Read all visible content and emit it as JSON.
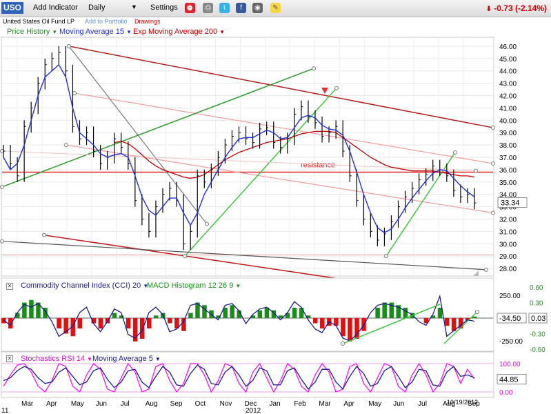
{
  "toolbar": {
    "ticker": "USO",
    "add_indicator": "Add Indicator",
    "period": "Daily",
    "settings": "Settings",
    "change": "-0.73 (-2.14%)",
    "icons": [
      "alarm-clock-icon",
      "print-icon",
      "twitter-icon",
      "facebook-icon",
      "camera-icon",
      "note-icon"
    ]
  },
  "subbar": {
    "name": "United States Oil Fund LP",
    "add_portfolio": "Add to Portfolio",
    "drawings": "Drawings"
  },
  "legends": {
    "price": "Price History",
    "ma": "Moving Average 15",
    "ema": "Exp Moving Average 200",
    "cci": "Commodity Channel Index (CCI) 20",
    "macd": "MACD Histogram 12 26 9",
    "stoch": "Stochastics RSI 14",
    "stoch_ma": "Moving Average 5"
  },
  "colors": {
    "price": "#000000",
    "ma": "#1e2ee0",
    "ema": "#c00000",
    "macd_pos": "#1a8c1a",
    "macd_neg": "#e01010",
    "cci": "#1a1a8c",
    "stoch": "#ff00ff",
    "stoch_ma": "#1a1a8c",
    "label_green": "#2a8a2a",
    "label_magenta": "#d010d0"
  },
  "chart_data": [
    {
      "type": "line",
      "panel": "price",
      "y_ticks": [
        "46.00",
        "45.00",
        "44.00",
        "43.00",
        "42.00",
        "41.00",
        "40.00",
        "39.00",
        "38.00",
        "37.00",
        "36.00",
        "35.00",
        "34.00",
        "33.00",
        "32.00",
        "31.00",
        "30.00",
        "29.00",
        "28.00"
      ],
      "ylim": [
        27.5,
        46.5
      ],
      "last_value": "33.34",
      "annotation": "resistance",
      "resistance_level": 35.8,
      "x_labels": [
        "Mar",
        "Apr",
        "May",
        "Jun",
        "Jul",
        "Aug",
        "Sep",
        "Oct",
        "Nov",
        "Dec",
        "Jan",
        "Feb",
        "Mar",
        "Apr",
        "May",
        "Jun",
        "Jul",
        "Aug",
        "Sep"
      ],
      "year_label": "2012",
      "left_label": "11",
      "date_label": "10/19/2012",
      "x": [
        0,
        10,
        20,
        30,
        40,
        50,
        60,
        70,
        80,
        90,
        100,
        110,
        120,
        130,
        140,
        150,
        160,
        170,
        180,
        190,
        200,
        210,
        220,
        230,
        240,
        250,
        260,
        270,
        280,
        290,
        300,
        310,
        320,
        330,
        340,
        350,
        360,
        370,
        380,
        390,
        400,
        410,
        420,
        430,
        440,
        450,
        460,
        470,
        480,
        490,
        500,
        510,
        520,
        530,
        540,
        550,
        560,
        570,
        580,
        590,
        600,
        610,
        620,
        630,
        640,
        650,
        660,
        670,
        680
      ],
      "close": [
        37.5,
        36.5,
        35.5,
        39.5,
        41,
        43,
        44.5,
        45,
        45.5,
        44,
        39.5,
        38.5,
        39,
        37.5,
        36.5,
        37,
        38.5,
        37.8,
        36.5,
        33.5,
        32,
        31,
        33,
        34,
        34.5,
        33.5,
        30,
        31,
        35.5,
        35,
        36,
        37,
        38,
        38.7,
        39,
        38.5,
        38.2,
        39.3,
        39.4,
        38.2,
        37.8,
        38.5,
        40.5,
        41.1,
        40.3,
        39.8,
        38.7,
        39,
        39.5,
        37.5,
        35.5,
        33.5,
        32,
        31,
        30.3,
        30.8,
        31.8,
        33,
        33.8,
        34.5,
        35.2,
        35.6,
        36.3,
        36,
        35.5,
        34.3,
        33.8,
        34,
        33.3
      ],
      "ma15": [
        37,
        36,
        36.5,
        38,
        40,
        42,
        43.5,
        44,
        44.5,
        43.5,
        41,
        39,
        38.5,
        38,
        37.3,
        37,
        37.2,
        37.3,
        37,
        35.5,
        33.8,
        32.7,
        32.3,
        33,
        33.7,
        33.7,
        32.5,
        31.5,
        32.5,
        34,
        35,
        36,
        37,
        37.8,
        38.5,
        38.6,
        38.6,
        38.9,
        39.2,
        39,
        38.5,
        38.6,
        39.4,
        40.2,
        40.4,
        40.2,
        39.6,
        39.3,
        39.2,
        38.8,
        37.5,
        35.8,
        34,
        32.5,
        31.3,
        30.9,
        31.2,
        32,
        32.9,
        33.7,
        34.4,
        35.1,
        35.7,
        36,
        35.9,
        35.3,
        34.7,
        34.2,
        33.8
      ],
      "ema200": [
        null,
        null,
        null,
        null,
        null,
        null,
        null,
        null,
        null,
        null,
        null,
        null,
        null,
        null,
        null,
        null,
        38.2,
        38.3,
        38.1,
        37.7,
        37.2,
        36.7,
        36.3,
        36,
        35.8,
        35.6,
        35.4,
        35.3,
        35.4,
        35.6,
        36,
        36.4,
        36.8,
        37.1,
        37.4,
        37.6,
        37.8,
        38,
        38.2,
        38.3,
        38.4,
        38.5,
        38.7,
        38.9,
        39,
        39.1,
        39.1,
        39.1,
        39,
        38.6,
        38.2,
        37.8,
        37.4,
        37,
        36.7,
        36.4,
        36.2,
        36.1,
        36,
        35.9,
        35.9,
        35.9,
        35.9,
        35.8,
        35.7,
        35.6,
        35.5,
        35.5,
        35.4
      ]
    },
    {
      "type": "line",
      "panel": "cci_macd",
      "left_ticks": [
        "250.00",
        "-250.00"
      ],
      "right_ticks": [
        "0.60",
        "0.30",
        "-0.30",
        "-0.60"
      ],
      "last_cci": "-34.50",
      "last_macd": "0.03",
      "x": [
        0,
        10,
        20,
        30,
        40,
        50,
        60,
        70,
        80,
        90,
        100,
        110,
        120,
        130,
        140,
        150,
        160,
        170,
        180,
        190,
        200,
        210,
        220,
        230,
        240,
        250,
        260,
        270,
        280,
        290,
        300,
        310,
        320,
        330,
        340,
        350,
        360,
        370,
        380,
        390,
        400,
        410,
        420,
        430,
        440,
        450,
        460,
        470,
        480,
        490,
        500,
        510,
        520,
        530,
        540,
        550,
        560,
        570,
        580,
        590,
        600,
        610,
        620,
        630,
        640,
        650,
        660,
        670,
        680
      ],
      "cci": [
        -20,
        -80,
        60,
        150,
        120,
        160,
        80,
        -40,
        -200,
        -150,
        -90,
        60,
        120,
        -60,
        -150,
        -40,
        100,
        60,
        -180,
        -220,
        -140,
        60,
        120,
        40,
        -150,
        -120,
        -40,
        140,
        160,
        100,
        40,
        -20,
        140,
        160,
        80,
        -60,
        40,
        100,
        120,
        60,
        -20,
        60,
        180,
        120,
        -20,
        -120,
        -160,
        -40,
        -80,
        -220,
        -250,
        -180,
        -80,
        60,
        140,
        160,
        140,
        120,
        80,
        40,
        -40,
        -80,
        40,
        240,
        -200,
        -140,
        -80,
        -20,
        -34
      ],
      "macd": [
        -0.1,
        -0.2,
        0.1,
        0.3,
        0.35,
        0.3,
        0.2,
        0,
        -0.2,
        -0.3,
        -0.35,
        -0.2,
        0,
        -0.1,
        -0.2,
        -0.1,
        0.1,
        0.05,
        -0.2,
        -0.45,
        -0.4,
        -0.2,
        0.05,
        0.1,
        -0.1,
        -0.2,
        -0.25,
        0.1,
        0.3,
        0.25,
        0.15,
        0.05,
        0.2,
        0.25,
        0.15,
        0,
        0.05,
        0.15,
        0.2,
        0.15,
        0.05,
        0.1,
        0.2,
        0.2,
        0.05,
        -0.1,
        -0.2,
        -0.15,
        -0.15,
        -0.35,
        -0.45,
        -0.4,
        -0.25,
        0,
        0.2,
        0.3,
        0.3,
        0.25,
        0.2,
        0.1,
        0,
        -0.1,
        0.05,
        0.2,
        -0.15,
        -0.25,
        -0.2,
        -0.05,
        0.03
      ]
    },
    {
      "type": "line",
      "panel": "stochastics",
      "left_ticks": [
        "100.00",
        "0.00"
      ],
      "last_value": "44.85",
      "x": [
        0,
        10,
        20,
        30,
        40,
        50,
        60,
        70,
        80,
        90,
        100,
        110,
        120,
        130,
        140,
        150,
        160,
        170,
        180,
        190,
        200,
        210,
        220,
        230,
        240,
        250,
        260,
        270,
        280,
        290,
        300,
        310,
        320,
        330,
        340,
        350,
        360,
        370,
        380,
        390,
        400,
        410,
        420,
        430,
        440,
        450,
        460,
        470,
        480,
        490,
        500,
        510,
        520,
        530,
        540,
        550,
        560,
        570,
        580,
        590,
        600,
        610,
        620,
        630,
        640,
        650,
        660,
        670,
        680
      ],
      "stoch": [
        20,
        60,
        95,
        100,
        70,
        20,
        0,
        40,
        100,
        90,
        20,
        0,
        60,
        100,
        80,
        10,
        0,
        50,
        100,
        70,
        0,
        10,
        90,
        100,
        40,
        0,
        30,
        100,
        100,
        60,
        0,
        40,
        100,
        90,
        30,
        0,
        70,
        100,
        50,
        0,
        40,
        100,
        80,
        20,
        0,
        60,
        100,
        70,
        0,
        10,
        90,
        100,
        30,
        0,
        50,
        100,
        90,
        20,
        0,
        60,
        100,
        60,
        0,
        30,
        100,
        90,
        30,
        80,
        45
      ],
      "ma5": [
        40,
        50,
        75,
        90,
        80,
        50,
        30,
        35,
        70,
        85,
        55,
        25,
        35,
        75,
        85,
        45,
        15,
        35,
        75,
        80,
        35,
        15,
        55,
        90,
        70,
        25,
        20,
        65,
        95,
        80,
        30,
        25,
        70,
        90,
        60,
        20,
        40,
        85,
        75,
        25,
        25,
        75,
        85,
        45,
        10,
        35,
        80,
        80,
        35,
        10,
        55,
        90,
        65,
        20,
        30,
        75,
        90,
        55,
        15,
        35,
        80,
        75,
        25,
        20,
        70,
        90,
        55,
        60,
        50
      ]
    }
  ]
}
